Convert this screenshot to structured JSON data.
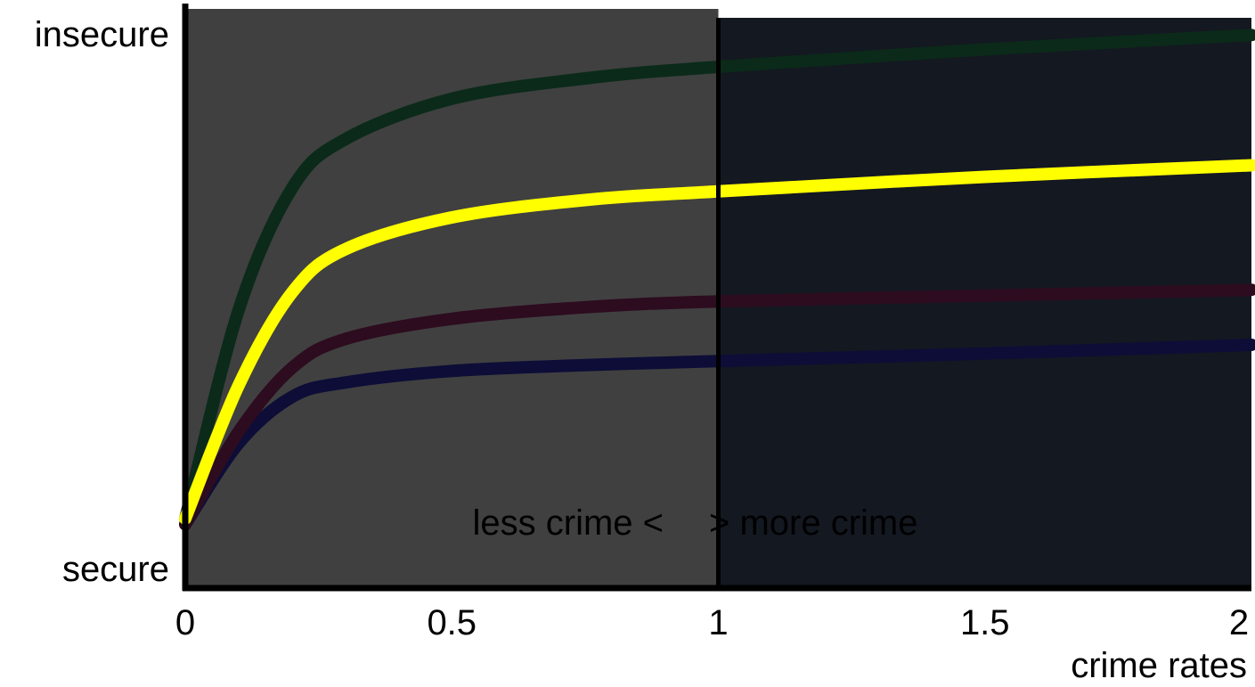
{
  "chart_data": {
    "type": "line",
    "title": "",
    "xlabel": "crime rates",
    "ylabel": "",
    "xlim": [
      0,
      2
    ],
    "ylim": [
      0,
      1
    ],
    "xticks": [
      {
        "value": 0,
        "label": "0"
      },
      {
        "value": 0.5,
        "label": "0.5"
      },
      {
        "value": 1,
        "label": "1"
      },
      {
        "value": 1.5,
        "label": "1.5"
      },
      {
        "value": 2,
        "label": "2"
      }
    ],
    "y_top_label": "insecure",
    "y_bottom_label": "secure",
    "grid": false,
    "legend": "none",
    "divider_x": 1,
    "annotation_left": "less crime <",
    "annotation_right": "> more crime",
    "region_colors": {
      "left": "#404040",
      "right": "#141821"
    },
    "series": [
      {
        "color": "#0b2a1a",
        "points": [
          [
            0,
            0.12
          ],
          [
            0.1,
            0.48
          ],
          [
            0.2,
            0.69
          ],
          [
            0.3,
            0.775
          ],
          [
            0.5,
            0.845
          ],
          [
            0.75,
            0.88
          ],
          [
            1,
            0.9
          ],
          [
            1.5,
            0.93
          ],
          [
            2,
            0.955
          ]
        ]
      },
      {
        "color": "#ffff00",
        "points": [
          [
            0,
            0.12
          ],
          [
            0.1,
            0.35
          ],
          [
            0.2,
            0.51
          ],
          [
            0.3,
            0.585
          ],
          [
            0.5,
            0.64
          ],
          [
            0.75,
            0.67
          ],
          [
            1,
            0.685
          ],
          [
            1.5,
            0.71
          ],
          [
            2,
            0.73
          ]
        ]
      },
      {
        "color": "#2d0c1f",
        "points": [
          [
            0,
            0.11
          ],
          [
            0.1,
            0.27
          ],
          [
            0.2,
            0.38
          ],
          [
            0.3,
            0.43
          ],
          [
            0.5,
            0.465
          ],
          [
            0.75,
            0.485
          ],
          [
            1,
            0.495
          ],
          [
            1.5,
            0.505
          ],
          [
            2,
            0.515
          ]
        ]
      },
      {
        "color": "#0d0d38",
        "points": [
          [
            0,
            0.11
          ],
          [
            0.1,
            0.25
          ],
          [
            0.2,
            0.33
          ],
          [
            0.3,
            0.355
          ],
          [
            0.5,
            0.375
          ],
          [
            0.75,
            0.385
          ],
          [
            1,
            0.392
          ],
          [
            1.5,
            0.405
          ],
          [
            2,
            0.42
          ]
        ]
      }
    ]
  }
}
